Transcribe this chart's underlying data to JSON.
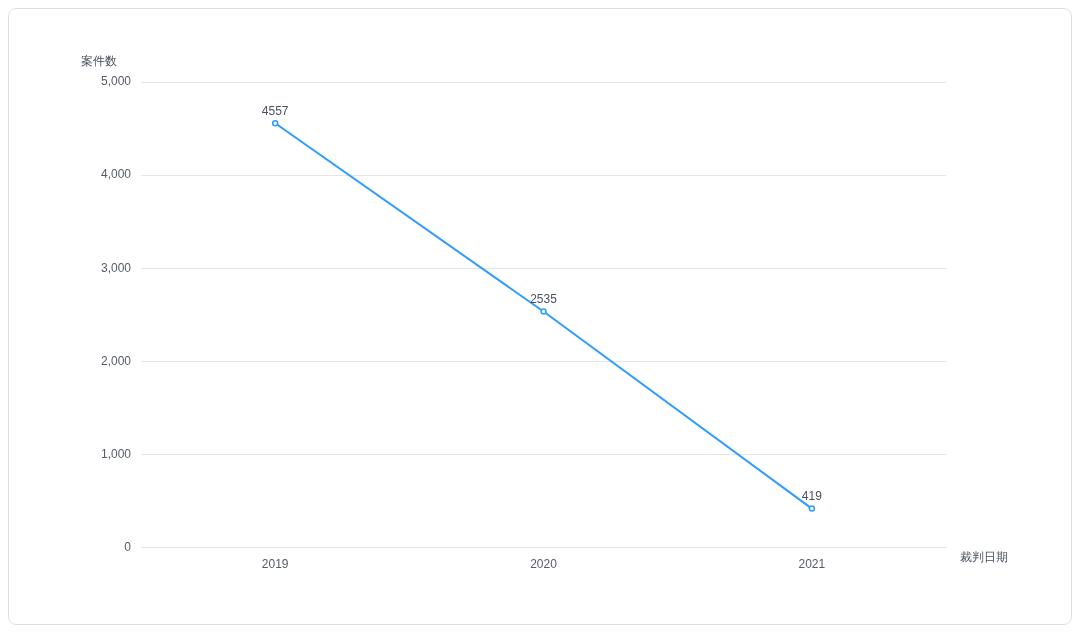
{
  "chart_data": {
    "type": "line",
    "xlabel": "裁判日期",
    "ylabel": "案件数",
    "categories": [
      "2019",
      "2020",
      "2021"
    ],
    "series": [
      {
        "color": "#2d9bff",
        "values": [
          4557,
          2535,
          419
        ]
      }
    ],
    "ylim": [
      0,
      5000
    ],
    "yticks": [
      0,
      {
        "value": 1000,
        "label": "1,000"
      },
      {
        "value": 2000,
        "label": "2,000"
      },
      {
        "value": 3000,
        "label": "3,000"
      },
      {
        "value": 4000,
        "label": "4,000"
      },
      {
        "value": 5000,
        "label": "5,000"
      }
    ],
    "grid": "y",
    "data_labels": true,
    "marker": "circle",
    "line_style": "solid"
  }
}
